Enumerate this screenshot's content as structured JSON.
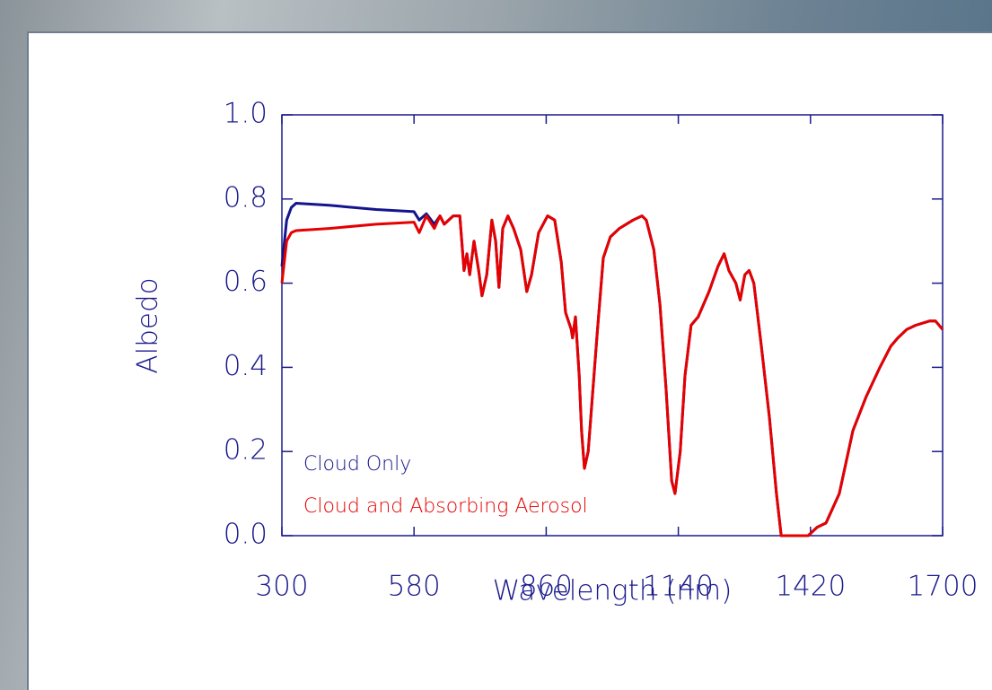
{
  "chart_data": {
    "type": "line",
    "xlabel": "Wavelength (nm)",
    "ylabel": "Albedo",
    "x": [
      300,
      310,
      320,
      330,
      400,
      500,
      580,
      591,
      606,
      623,
      635,
      644,
      663,
      677,
      686,
      692,
      698,
      707,
      717,
      724,
      734,
      745,
      753,
      760,
      768,
      779,
      791,
      806,
      819,
      829,
      844,
      863,
      878,
      892,
      901,
      913,
      916,
      922,
      930,
      935,
      941,
      949,
      968,
      981,
      996,
      1015,
      1044,
      1063,
      1072,
      1088,
      1101,
      1114,
      1126,
      1133,
      1144,
      1154,
      1167,
      1182,
      1205,
      1224,
      1237,
      1247,
      1262,
      1271,
      1281,
      1290,
      1300,
      1316,
      1333,
      1348,
      1358,
      1415,
      1434,
      1453,
      1481,
      1510,
      1538,
      1567,
      1590,
      1605,
      1624,
      1643,
      1672,
      1685,
      1700
    ],
    "series": [
      {
        "name": "Cloud Only",
        "color": "#14148c",
        "values": [
          0.64,
          0.75,
          0.78,
          0.79,
          0.785,
          0.775,
          0.77,
          0.75,
          0.765,
          0.74,
          0.76,
          0.74,
          0.76,
          0.76,
          0.63,
          0.67,
          0.62,
          0.7,
          0.63,
          0.57,
          0.62,
          0.75,
          0.7,
          0.59,
          0.73,
          0.76,
          0.73,
          0.68,
          0.58,
          0.62,
          0.72,
          0.76,
          0.75,
          0.65,
          0.53,
          0.49,
          0.47,
          0.52,
          0.38,
          0.25,
          0.16,
          0.2,
          0.48,
          0.66,
          0.71,
          0.73,
          0.75,
          0.76,
          0.75,
          0.68,
          0.55,
          0.35,
          0.13,
          0.1,
          0.2,
          0.38,
          0.5,
          0.52,
          0.58,
          0.64,
          0.67,
          0.63,
          0.6,
          0.56,
          0.62,
          0.63,
          0.6,
          0.45,
          0.28,
          0.1,
          0.0,
          0.0,
          0.02,
          0.03,
          0.1,
          0.25,
          0.33,
          0.4,
          0.45,
          0.47,
          0.49,
          0.5,
          0.51,
          0.51,
          0.49
        ]
      },
      {
        "name": "Cloud and Absorbing Aerosol",
        "color": "#e60000",
        "values": [
          0.6,
          0.7,
          0.72,
          0.725,
          0.73,
          0.74,
          0.745,
          0.72,
          0.76,
          0.73,
          0.76,
          0.74,
          0.76,
          0.76,
          0.63,
          0.67,
          0.62,
          0.7,
          0.63,
          0.57,
          0.62,
          0.75,
          0.7,
          0.59,
          0.73,
          0.76,
          0.73,
          0.68,
          0.58,
          0.62,
          0.72,
          0.76,
          0.75,
          0.65,
          0.53,
          0.49,
          0.47,
          0.52,
          0.38,
          0.25,
          0.16,
          0.2,
          0.48,
          0.66,
          0.71,
          0.73,
          0.75,
          0.76,
          0.75,
          0.68,
          0.55,
          0.35,
          0.13,
          0.1,
          0.2,
          0.38,
          0.5,
          0.52,
          0.58,
          0.64,
          0.67,
          0.63,
          0.6,
          0.56,
          0.62,
          0.63,
          0.6,
          0.45,
          0.28,
          0.1,
          0.0,
          0.0,
          0.02,
          0.03,
          0.1,
          0.25,
          0.33,
          0.4,
          0.45,
          0.47,
          0.49,
          0.5,
          0.51,
          0.51,
          0.49
        ]
      }
    ],
    "xlim": [
      300,
      1700
    ],
    "xticks": [
      300,
      580,
      860,
      1140,
      1420,
      1700
    ],
    "ylim": [
      0,
      1
    ],
    "yticks": [
      {
        "value": 0,
        "label": "0.0"
      },
      0.2,
      0.4,
      0.6,
      0.8,
      {
        "value": 1,
        "label": "1.0"
      }
    ],
    "axis_color": "#1a1a8c"
  }
}
